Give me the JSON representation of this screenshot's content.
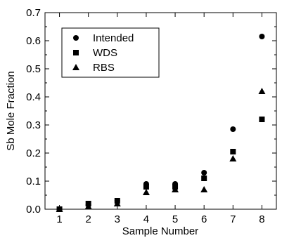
{
  "chart_data": {
    "type": "scatter",
    "title": "",
    "xlabel": "Sample Number",
    "ylabel": "Sb Mole Fraction",
    "xlim": [
      0.5,
      8.5
    ],
    "ylim": [
      0,
      0.7
    ],
    "x_ticks": [
      "1",
      "2",
      "3",
      "4",
      "5",
      "6",
      "7",
      "8"
    ],
    "y_ticks": [
      "0.0",
      "0.1",
      "0.2",
      "0.3",
      "0.4",
      "0.5",
      "0.6",
      "0.7"
    ],
    "grid": false,
    "legend_position": "top-left",
    "series": [
      {
        "name": "Intended",
        "marker": "circle",
        "x": [
          1,
          2,
          3,
          4,
          5,
          6,
          7,
          8
        ],
        "y": [
          0.0,
          0.015,
          0.03,
          0.09,
          0.09,
          0.13,
          0.285,
          0.615
        ]
      },
      {
        "name": "WDS",
        "marker": "square",
        "x": [
          1,
          2,
          3,
          4,
          5,
          6,
          7,
          8
        ],
        "y": [
          0.0,
          0.02,
          0.03,
          0.08,
          0.08,
          0.11,
          0.205,
          0.32
        ]
      },
      {
        "name": "RBS",
        "marker": "triangle",
        "x": [
          1,
          2,
          3,
          4,
          5,
          6,
          7,
          8
        ],
        "y": [
          0.0,
          0.01,
          0.02,
          0.06,
          0.07,
          0.07,
          0.18,
          0.42
        ]
      }
    ]
  }
}
